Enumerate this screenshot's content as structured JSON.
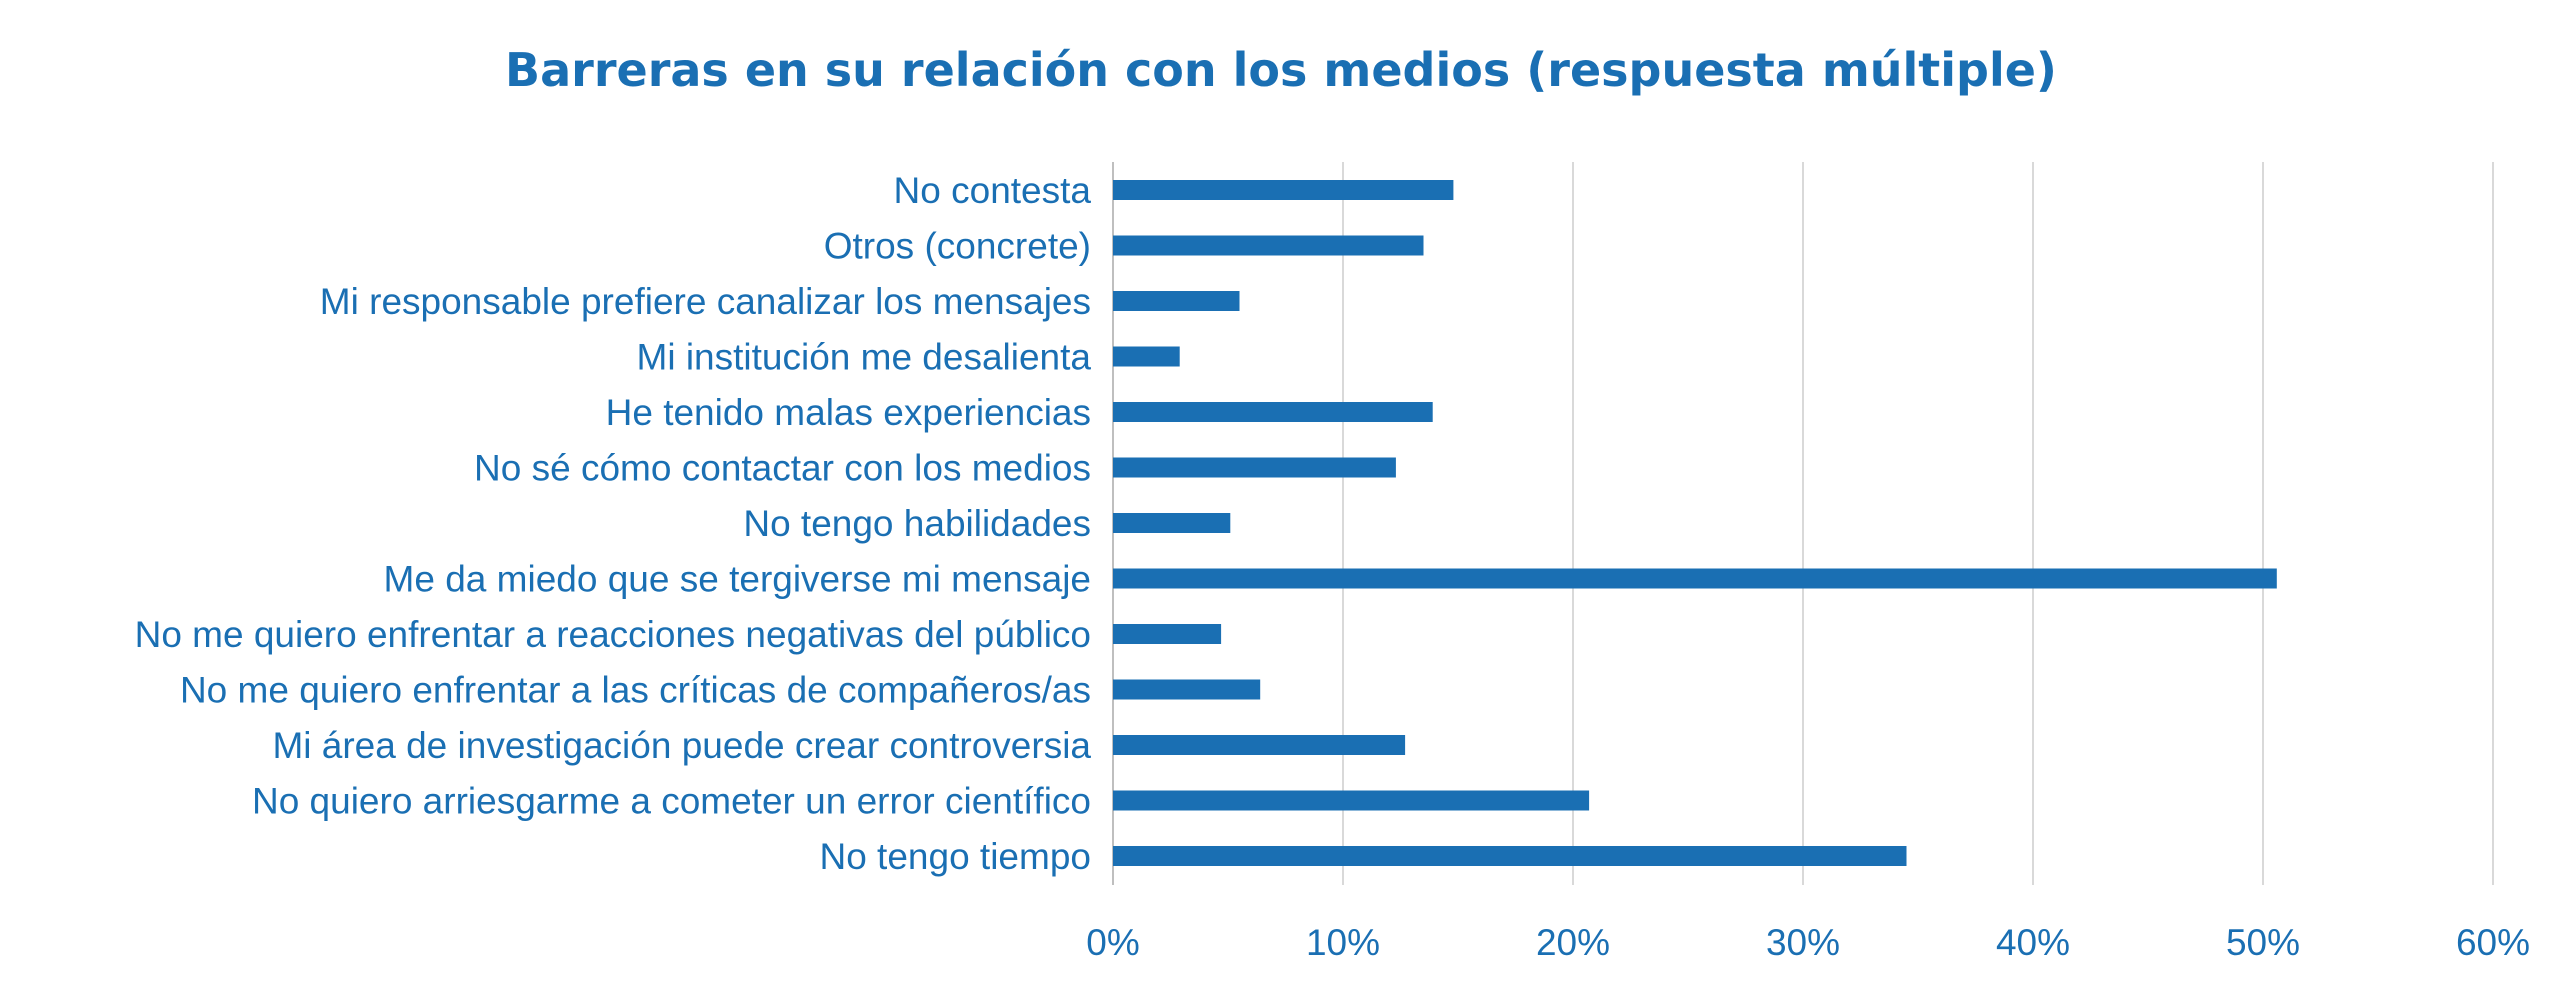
{
  "chart_data": {
    "type": "bar",
    "orientation": "horizontal",
    "title": "Barreras en su relación con los medios (respuesta múltiple)",
    "xlabel": "",
    "ylabel": "",
    "xlim": [
      0,
      60
    ],
    "x_ticks": [
      "0%",
      "10%",
      "20%",
      "30%",
      "40%",
      "50%",
      "60%"
    ],
    "grid": true,
    "color": "#1a6fb3",
    "categories": [
      "No contesta",
      "Otros (concrete)",
      "Mi responsable prefiere canalizar los mensajes",
      "Mi institución me desalienta",
      "He tenido malas experiencias",
      "No sé cómo contactar con los medios",
      "No tengo habilidades",
      "Me da miedo que se tergiverse mi mensaje",
      "No me quiero enfrentar a reacciones negativas del público",
      "No me quiero enfrentar a las críticas de compañeros/as",
      "Mi área de investigación puede crear controversia",
      "No quiero arriesgarme a cometer un error científico",
      "No tengo tiempo"
    ],
    "values": [
      14.8,
      13.5,
      5.5,
      2.9,
      13.9,
      12.3,
      5.1,
      50.6,
      4.7,
      6.4,
      12.7,
      20.7,
      34.5
    ]
  }
}
